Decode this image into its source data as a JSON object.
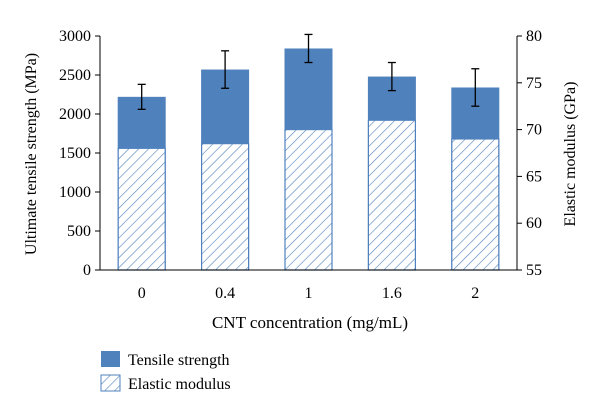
{
  "chart_data": {
    "type": "bar",
    "categories": [
      "0",
      "0.4",
      "1",
      "1.6",
      "2"
    ],
    "xlabel": "CNT concentration (mg/mL)",
    "ylabel_left": "Ultimate tensile strength (MPa)",
    "ylabel_right": "Elastic modulus (GPa)",
    "ylim_left": [
      0,
      3000
    ],
    "yticks_left": [
      0,
      500,
      1000,
      1500,
      2000,
      2500,
      3000
    ],
    "ylim_right": [
      55,
      80
    ],
    "yticks_right": [
      55,
      60,
      65,
      70,
      75,
      80
    ],
    "grid": false,
    "legend_position": "bottom-left",
    "series": [
      {
        "name": "Tensile strength",
        "axis": "left",
        "style": "solid",
        "color": "#4f81bd",
        "values": [
          2220,
          2570,
          2840,
          2480,
          2340
        ],
        "error": [
          160,
          240,
          180,
          180,
          240
        ]
      },
      {
        "name": "Elastic modulus",
        "axis": "right",
        "style": "hatched",
        "color": "#4f81bd",
        "values": [
          68,
          68.5,
          70,
          71,
          69
        ]
      }
    ]
  }
}
